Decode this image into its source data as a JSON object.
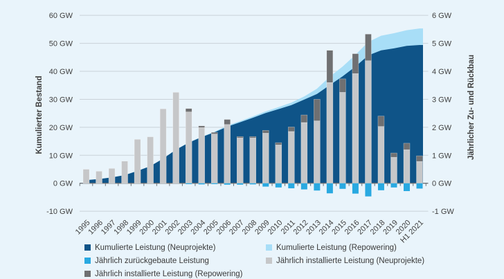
{
  "chart_data": {
    "type": "area+bar combo (dual axis)",
    "left_axis": {
      "title": "Kumulierter Bestand",
      "tick_labels": [
        "60 GW",
        "50 GW",
        "40 GW",
        "30 GW",
        "20 GW",
        "10 GW",
        "0 GW",
        "-10 GW"
      ],
      "tick_values": [
        60,
        50,
        40,
        30,
        20,
        10,
        0,
        -10
      ],
      "range": [
        -10,
        60
      ]
    },
    "right_axis": {
      "title": "Jährlicher Zu- und Rückbau",
      "tick_labels": [
        "6 GW",
        "5 GW",
        "4 GW",
        "3 GW",
        "2 GW",
        "1 GW",
        "0 GW",
        "-1 GW"
      ],
      "tick_values": [
        6,
        5,
        4,
        3,
        2,
        1,
        0,
        -1
      ],
      "range": [
        -1,
        6
      ]
    },
    "categories": [
      "1995",
      "1996",
      "1997",
      "1998",
      "1999",
      "2000",
      "2001",
      "2002",
      "2003",
      "2004",
      "2005",
      "2006",
      "2007",
      "2008",
      "2009",
      "2010",
      "2011",
      "2012",
      "2013",
      "2014",
      "2015",
      "2016",
      "2017",
      "2018",
      "2019",
      "2020",
      "H1 2021"
    ],
    "series": [
      {
        "name": "Kumulierte Leistung (Neuprojekte)",
        "type": "area",
        "axis": "left",
        "unit": "GW",
        "values": [
          1.1,
          1.5,
          2.1,
          2.9,
          4.4,
          6.1,
          8.8,
          12.0,
          14.5,
          16.5,
          18.2,
          20.2,
          21.8,
          23.4,
          25.1,
          26.5,
          27.9,
          29.9,
          31.9,
          35.1,
          38.2,
          41.7,
          45.7,
          47.5,
          48.2,
          49.1,
          49.4
        ]
      },
      {
        "name": "Kumulierte Leistung (Repowering)",
        "type": "area-stacked-top",
        "axis": "left",
        "unit": "GW",
        "values_total": [
          1.1,
          1.5,
          2.1,
          2.9,
          4.4,
          6.1,
          8.8,
          12.0,
          14.6,
          16.6,
          18.4,
          20.6,
          22.2,
          23.9,
          25.7,
          27.2,
          28.8,
          31.0,
          33.8,
          38.1,
          41.7,
          45.9,
          50.5,
          52.7,
          53.6,
          54.7,
          55.3
        ]
      },
      {
        "name": "Jährlich installierte Leistung (Neuprojekte)",
        "type": "bar",
        "axis": "right",
        "unit": "GW",
        "values": [
          0.5,
          0.43,
          0.53,
          0.79,
          1.57,
          1.66,
          2.66,
          3.25,
          2.55,
          1.99,
          1.76,
          2.1,
          1.62,
          1.62,
          1.79,
          1.37,
          1.85,
          2.17,
          2.23,
          3.6,
          3.25,
          3.92,
          4.38,
          2.03,
          0.93,
          1.2,
          0.78
        ]
      },
      {
        "name": "Jährlich installierte Leistung (Repowering)",
        "type": "bar-stacked",
        "axis": "right",
        "unit": "GW",
        "values": [
          0,
          0,
          0,
          0,
          0,
          0,
          0,
          0,
          0.12,
          0.06,
          0.06,
          0.18,
          0.05,
          0.05,
          0.1,
          0.08,
          0.16,
          0.27,
          0.77,
          1.15,
          0.48,
          0.71,
          0.95,
          0.37,
          0.15,
          0.23,
          0.2
        ]
      },
      {
        "name": "Jährlich zurückgebaute Leistung",
        "type": "bar-negative",
        "axis": "right",
        "unit": "GW",
        "values": [
          0,
          0,
          0,
          0,
          0,
          0,
          0,
          0,
          -0.03,
          -0.04,
          -0.03,
          -0.05,
          -0.05,
          -0.04,
          -0.12,
          -0.15,
          -0.18,
          -0.22,
          -0.26,
          -0.36,
          -0.2,
          -0.37,
          -0.47,
          -0.25,
          -0.15,
          -0.28,
          -0.19
        ]
      }
    ],
    "grid": true,
    "legend_position": "bottom"
  },
  "chart": {
    "left_axis": {
      "title": "Kumulierter Bestand"
    },
    "right_axis": {
      "title": "Jährlicher Zu- und Rückbau"
    },
    "legend": {
      "columns": [
        {
          "items": [
            {
              "label": "Kumulierte Leistung (Neuprojekte)",
              "color": "#0f5488"
            },
            {
              "label": "Jährlich zurückgebaute Leistung",
              "color": "#29a9e1"
            },
            {
              "label": "Jährlich installierte Leistung (Repowering)",
              "color": "#6f7072"
            }
          ]
        },
        {
          "items": [
            {
              "label": "Kumulierte Leistung (Repowering)",
              "color": "#a8def7"
            },
            {
              "label": "Jährlich installierte Leistung (Neuprojekte)",
              "color": "#c6c7c9"
            }
          ]
        }
      ]
    }
  },
  "colors": {
    "background": "#e9f4fb",
    "cumulative_new": "#0f5488",
    "cumulative_repowering": "#a8def7",
    "decommissioned": "#29a9e1",
    "annual_new": "#c6c7c9",
    "annual_repowering": "#6f7072",
    "gridline": "#c9d2d9",
    "zero_line": "#6d7277",
    "text": "#3f3f3f"
  }
}
